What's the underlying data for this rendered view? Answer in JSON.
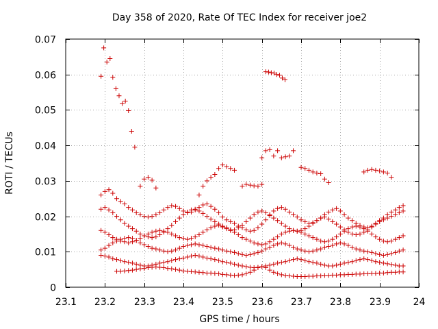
{
  "chart_data": {
    "type": "scatter",
    "title": "Day 358 of 2020, Rate Of TEC Index for receiver joe2",
    "xlabel": "GPS time / hours",
    "ylabel": "ROTI / TECUs",
    "xlim": [
      23.1,
      24.0
    ],
    "ylim": [
      0,
      0.07
    ],
    "x_ticks": [
      "23.1",
      "23.2",
      "23.3",
      "23.4",
      "23.5",
      "23.6",
      "23.7",
      "23.8",
      "23.9",
      "24"
    ],
    "y_ticks": [
      "0",
      "0.01",
      "0.02",
      "0.03",
      "0.04",
      "0.05",
      "0.06",
      "0.07"
    ],
    "grid": true,
    "marker": "+",
    "color": "#cc0000",
    "series": [
      {
        "name": "decaying arc",
        "x": [
          23.19,
          23.197,
          23.205,
          23.213,
          23.22,
          23.228,
          23.236,
          23.244,
          23.252,
          23.26,
          23.268,
          23.276
        ],
        "y": [
          0.0595,
          0.0675,
          0.0635,
          0.0645,
          0.0592,
          0.056,
          0.054,
          0.0518,
          0.0525,
          0.0498,
          0.044,
          0.0395
        ]
      },
      {
        "name": "high arc 23.6",
        "x": [
          23.61,
          23.617,
          23.624,
          23.631,
          23.638,
          23.645,
          23.652,
          23.659
        ],
        "y": [
          0.0608,
          0.0607,
          0.0605,
          0.0604,
          0.06,
          0.0598,
          0.059,
          0.0585
        ]
      },
      {
        "name": "arc near 0.038",
        "x": [
          23.6,
          23.61,
          23.62,
          23.63,
          23.64,
          23.65,
          23.66,
          23.67,
          23.68
        ],
        "y": [
          0.0365,
          0.0385,
          0.0388,
          0.037,
          0.0385,
          0.0365,
          0.0368,
          0.037,
          0.0385
        ]
      },
      {
        "name": "upper band 0.025-0.034",
        "x": [
          23.29,
          23.3,
          23.31,
          23.32,
          23.33,
          23.44,
          23.45,
          23.46,
          23.47,
          23.48,
          23.49,
          23.5,
          23.51,
          23.52,
          23.53,
          23.55,
          23.56,
          23.57,
          23.58,
          23.59,
          23.6,
          23.7,
          23.71,
          23.72,
          23.73,
          23.74,
          23.75,
          23.76,
          23.77,
          23.86,
          23.87,
          23.88,
          23.89,
          23.9,
          23.91,
          23.92,
          23.93
        ],
        "y": [
          0.0285,
          0.0305,
          0.031,
          0.0302,
          0.028,
          0.026,
          0.0285,
          0.03,
          0.031,
          0.0318,
          0.0335,
          0.0345,
          0.034,
          0.0335,
          0.033,
          0.0285,
          0.029,
          0.0288,
          0.0286,
          0.0285,
          0.029,
          0.0338,
          0.0335,
          0.033,
          0.0325,
          0.0322,
          0.032,
          0.0305,
          0.0295,
          0.0325,
          0.033,
          0.0332,
          0.033,
          0.0328,
          0.0325,
          0.0322,
          0.031
        ]
      },
      {
        "name": "band A",
        "x": [
          23.19,
          23.2,
          23.21,
          23.22,
          23.23,
          23.24,
          23.25,
          23.26,
          23.27,
          23.28,
          23.29,
          23.3,
          23.31,
          23.32,
          23.33,
          23.34,
          23.35,
          23.36,
          23.37,
          23.38,
          23.39,
          23.4,
          23.41,
          23.42,
          23.43,
          23.44,
          23.45,
          23.46,
          23.47,
          23.48,
          23.49,
          23.5,
          23.51,
          23.52,
          23.53,
          23.54,
          23.55,
          23.56,
          23.57,
          23.58,
          23.59,
          23.6,
          23.61,
          23.62,
          23.63,
          23.64,
          23.65,
          23.66,
          23.67,
          23.68,
          23.69,
          23.7,
          23.71,
          23.72,
          23.73,
          23.74,
          23.75,
          23.76,
          23.77,
          23.78,
          23.79,
          23.8,
          23.81,
          23.82,
          23.83,
          23.84,
          23.85,
          23.86,
          23.87,
          23.88,
          23.89,
          23.9,
          23.91,
          23.92,
          23.93,
          23.94,
          23.95,
          23.96
        ],
        "y": [
          0.026,
          0.027,
          0.0275,
          0.0265,
          0.025,
          0.0242,
          0.0235,
          0.0225,
          0.0218,
          0.021,
          0.0205,
          0.02,
          0.0198,
          0.02,
          0.0205,
          0.021,
          0.0218,
          0.0225,
          0.023,
          0.0228,
          0.0222,
          0.0215,
          0.021,
          0.0212,
          0.0218,
          0.0225,
          0.0232,
          0.0235,
          0.0228,
          0.022,
          0.021,
          0.0198,
          0.019,
          0.0185,
          0.018,
          0.0172,
          0.0168,
          0.0162,
          0.0158,
          0.016,
          0.0168,
          0.0178,
          0.019,
          0.0205,
          0.0215,
          0.0222,
          0.0225,
          0.022,
          0.0212,
          0.0205,
          0.0198,
          0.019,
          0.0185,
          0.018,
          0.0182,
          0.0188,
          0.0195,
          0.0205,
          0.0212,
          0.0218,
          0.0222,
          0.0215,
          0.0205,
          0.0195,
          0.0188,
          0.018,
          0.0175,
          0.017,
          0.0168,
          0.0172,
          0.018,
          0.0188,
          0.0195,
          0.0205,
          0.0212,
          0.0218,
          0.0225,
          0.023
        ]
      },
      {
        "name": "band B",
        "x": [
          23.19,
          23.2,
          23.21,
          23.22,
          23.23,
          23.24,
          23.25,
          23.26,
          23.27,
          23.28,
          23.29,
          23.3,
          23.31,
          23.32,
          23.33,
          23.34,
          23.35,
          23.36,
          23.37,
          23.38,
          23.39,
          23.4,
          23.41,
          23.42,
          23.43,
          23.44,
          23.45,
          23.46,
          23.47,
          23.48,
          23.49,
          23.5,
          23.51,
          23.52,
          23.53,
          23.54,
          23.55,
          23.56,
          23.57,
          23.58,
          23.59,
          23.6,
          23.61,
          23.62,
          23.63,
          23.64,
          23.65,
          23.66,
          23.67,
          23.68,
          23.69,
          23.7,
          23.71,
          23.72,
          23.73,
          23.74,
          23.75,
          23.76,
          23.77,
          23.78,
          23.79,
          23.8,
          23.81,
          23.82,
          23.83,
          23.84,
          23.85,
          23.86,
          23.87,
          23.88,
          23.89,
          23.9,
          23.91,
          23.92,
          23.93,
          23.94,
          23.95,
          23.96
        ],
        "y": [
          0.022,
          0.0225,
          0.0218,
          0.021,
          0.02,
          0.019,
          0.018,
          0.0172,
          0.0165,
          0.0158,
          0.015,
          0.0145,
          0.0142,
          0.014,
          0.0142,
          0.0148,
          0.0155,
          0.0165,
          0.0175,
          0.0185,
          0.0195,
          0.0205,
          0.0212,
          0.0218,
          0.022,
          0.0215,
          0.0208,
          0.02,
          0.0192,
          0.0185,
          0.0178,
          0.017,
          0.0165,
          0.016,
          0.0162,
          0.0168,
          0.0175,
          0.0185,
          0.0195,
          0.0205,
          0.0212,
          0.0215,
          0.021,
          0.0202,
          0.0195,
          0.0188,
          0.018,
          0.0172,
          0.0165,
          0.016,
          0.0158,
          0.016,
          0.0165,
          0.0172,
          0.018,
          0.0188,
          0.0195,
          0.0198,
          0.0192,
          0.0185,
          0.0178,
          0.017,
          0.0162,
          0.0155,
          0.015,
          0.0148,
          0.015,
          0.0155,
          0.0162,
          0.017,
          0.0178,
          0.0185,
          0.019,
          0.0195,
          0.02,
          0.0205,
          0.021,
          0.0215
        ]
      },
      {
        "name": "band C",
        "x": [
          23.19,
          23.2,
          23.21,
          23.22,
          23.23,
          23.24,
          23.25,
          23.26,
          23.27,
          23.28,
          23.29,
          23.3,
          23.31,
          23.32,
          23.33,
          23.34,
          23.35,
          23.36,
          23.37,
          23.38,
          23.39,
          23.4,
          23.41,
          23.42,
          23.43,
          23.44,
          23.45,
          23.46,
          23.47,
          23.48,
          23.49,
          23.5,
          23.51,
          23.52,
          23.53,
          23.54,
          23.55,
          23.56,
          23.57,
          23.58,
          23.59,
          23.6,
          23.61,
          23.62,
          23.63,
          23.64,
          23.65,
          23.66,
          23.67,
          23.68,
          23.69,
          23.7,
          23.71,
          23.72,
          23.73,
          23.74,
          23.75,
          23.76,
          23.77,
          23.78,
          23.79,
          23.8,
          23.81,
          23.82,
          23.83,
          23.84,
          23.85,
          23.86,
          23.87,
          23.88,
          23.89,
          23.9,
          23.91,
          23.92,
          23.93,
          23.94,
          23.95,
          23.96
        ],
        "y": [
          0.016,
          0.0155,
          0.0148,
          0.014,
          0.0135,
          0.013,
          0.0128,
          0.0125,
          0.0128,
          0.0132,
          0.0138,
          0.0145,
          0.015,
          0.0155,
          0.0158,
          0.016,
          0.0158,
          0.0155,
          0.015,
          0.0145,
          0.014,
          0.0138,
          0.0135,
          0.0138,
          0.0142,
          0.0148,
          0.0155,
          0.0162,
          0.0168,
          0.0172,
          0.0175,
          0.0172,
          0.0168,
          0.0162,
          0.0155,
          0.0148,
          0.014,
          0.0135,
          0.013,
          0.0125,
          0.0122,
          0.012,
          0.0122,
          0.0128,
          0.0135,
          0.0142,
          0.015,
          0.0155,
          0.0158,
          0.016,
          0.0158,
          0.0155,
          0.015,
          0.0145,
          0.014,
          0.0135,
          0.013,
          0.0128,
          0.013,
          0.0135,
          0.0142,
          0.015,
          0.0158,
          0.0165,
          0.017,
          0.0172,
          0.017,
          0.0165,
          0.0158,
          0.015,
          0.0142,
          0.0135,
          0.013,
          0.0128,
          0.013,
          0.0135,
          0.014,
          0.0145
        ]
      },
      {
        "name": "band D",
        "x": [
          23.19,
          23.2,
          23.21,
          23.22,
          23.23,
          23.24,
          23.25,
          23.26,
          23.27,
          23.28,
          23.29,
          23.3,
          23.31,
          23.32,
          23.33,
          23.34,
          23.35,
          23.36,
          23.37,
          23.38,
          23.39,
          23.4,
          23.41,
          23.42,
          23.43,
          23.44,
          23.45,
          23.46,
          23.47,
          23.48,
          23.49,
          23.5,
          23.51,
          23.52,
          23.53,
          23.54,
          23.55,
          23.56,
          23.57,
          23.58,
          23.59,
          23.6,
          23.61,
          23.62,
          23.63,
          23.64,
          23.65,
          23.66,
          23.67,
          23.68,
          23.69,
          23.7,
          23.71,
          23.72,
          23.73,
          23.74,
          23.75,
          23.76,
          23.77,
          23.78,
          23.79,
          23.8,
          23.81,
          23.82,
          23.83,
          23.84,
          23.85,
          23.86,
          23.87,
          23.88,
          23.89,
          23.9,
          23.91,
          23.92,
          23.93,
          23.94,
          23.95,
          23.96
        ],
        "y": [
          0.0105,
          0.011,
          0.0118,
          0.0125,
          0.013,
          0.0135,
          0.0138,
          0.014,
          0.0138,
          0.0132,
          0.0125,
          0.012,
          0.0115,
          0.011,
          0.0108,
          0.0105,
          0.0102,
          0.01,
          0.0102,
          0.0105,
          0.011,
          0.0115,
          0.0118,
          0.012,
          0.0122,
          0.012,
          0.0118,
          0.0115,
          0.0112,
          0.011,
          0.0108,
          0.0105,
          0.0102,
          0.01,
          0.0098,
          0.0095,
          0.0092,
          0.009,
          0.0092,
          0.0095,
          0.0098,
          0.0102,
          0.0108,
          0.0112,
          0.0118,
          0.0122,
          0.0125,
          0.0122,
          0.0118,
          0.0112,
          0.0108,
          0.0105,
          0.0102,
          0.01,
          0.0102,
          0.0105,
          0.0108,
          0.0112,
          0.0115,
          0.0118,
          0.0122,
          0.0125,
          0.0122,
          0.0118,
          0.0112,
          0.0108,
          0.0105,
          0.0102,
          0.01,
          0.0098,
          0.0095,
          0.0092,
          0.009,
          0.0092,
          0.0095,
          0.0098,
          0.0102,
          0.0105
        ]
      },
      {
        "name": "band E",
        "x": [
          23.19,
          23.2,
          23.21,
          23.22,
          23.23,
          23.24,
          23.25,
          23.26,
          23.27,
          23.28,
          23.29,
          23.3,
          23.31,
          23.32,
          23.33,
          23.34,
          23.35,
          23.36,
          23.37,
          23.38,
          23.39,
          23.4,
          23.41,
          23.42,
          23.43,
          23.44,
          23.45,
          23.46,
          23.47,
          23.48,
          23.49,
          23.5,
          23.51,
          23.52,
          23.53,
          23.54,
          23.55,
          23.56,
          23.57,
          23.58,
          23.59,
          23.6,
          23.61,
          23.62,
          23.63,
          23.64,
          23.65,
          23.66,
          23.67,
          23.68,
          23.69,
          23.7,
          23.71,
          23.72,
          23.73,
          23.74,
          23.75,
          23.76,
          23.77,
          23.78,
          23.79,
          23.8,
          23.81,
          23.82,
          23.83,
          23.84,
          23.85,
          23.86,
          23.87,
          23.88,
          23.89,
          23.9,
          23.91,
          23.92,
          23.93,
          23.94,
          23.95,
          23.96
        ],
        "y": [
          0.009,
          0.0088,
          0.0085,
          0.008,
          0.0078,
          0.0075,
          0.0072,
          0.007,
          0.0068,
          0.0065,
          0.0062,
          0.006,
          0.006,
          0.0062,
          0.0065,
          0.0068,
          0.007,
          0.0072,
          0.0075,
          0.0078,
          0.008,
          0.0082,
          0.0085,
          0.0088,
          0.009,
          0.0088,
          0.0085,
          0.0082,
          0.008,
          0.0078,
          0.0075,
          0.0072,
          0.007,
          0.0068,
          0.0065,
          0.0062,
          0.006,
          0.0058,
          0.0056,
          0.0055,
          0.0056,
          0.0058,
          0.006,
          0.0062,
          0.0065,
          0.0068,
          0.007,
          0.0072,
          0.0075,
          0.0078,
          0.008,
          0.0078,
          0.0075,
          0.0072,
          0.007,
          0.0068,
          0.0065,
          0.0062,
          0.006,
          0.006,
          0.0062,
          0.0065,
          0.0068,
          0.007,
          0.0072,
          0.0075,
          0.0078,
          0.008,
          0.0078,
          0.0075,
          0.0072,
          0.007,
          0.0068,
          0.0066,
          0.0064,
          0.0062,
          0.006,
          0.006
        ]
      },
      {
        "name": "baseline band",
        "x": [
          23.23,
          23.24,
          23.25,
          23.26,
          23.27,
          23.28,
          23.29,
          23.3,
          23.31,
          23.32,
          23.33,
          23.34,
          23.35,
          23.36,
          23.37,
          23.38,
          23.39,
          23.4,
          23.41,
          23.42,
          23.43,
          23.44,
          23.45,
          23.46,
          23.47,
          23.48,
          23.49,
          23.5,
          23.51,
          23.52,
          23.53,
          23.54,
          23.55,
          23.56,
          23.57,
          23.58,
          23.59,
          23.6,
          23.61,
          23.62,
          23.63,
          23.64,
          23.65,
          23.66,
          23.67,
          23.68,
          23.69,
          23.7,
          23.71,
          23.72,
          23.73,
          23.74,
          23.75,
          23.76,
          23.77,
          23.78,
          23.79,
          23.8,
          23.81,
          23.82,
          23.83,
          23.84,
          23.85,
          23.86,
          23.87,
          23.88,
          23.89,
          23.9,
          23.91,
          23.92,
          23.93,
          23.94,
          23.95,
          23.96
        ],
        "y": [
          0.0045,
          0.0045,
          0.0046,
          0.0047,
          0.0048,
          0.005,
          0.0052,
          0.0053,
          0.0055,
          0.0056,
          0.0057,
          0.0056,
          0.0055,
          0.0053,
          0.0052,
          0.005,
          0.0048,
          0.0046,
          0.0045,
          0.0044,
          0.0043,
          0.0042,
          0.0041,
          0.004,
          0.004,
          0.0039,
          0.0038,
          0.0036,
          0.0035,
          0.0034,
          0.0033,
          0.0034,
          0.0035,
          0.0038,
          0.0042,
          0.0048,
          0.0055,
          0.0058,
          0.0055,
          0.0048,
          0.0042,
          0.0038,
          0.0035,
          0.0033,
          0.0032,
          0.0031,
          0.003,
          0.003,
          0.003,
          0.0031,
          0.0031,
          0.0032,
          0.0032,
          0.0033,
          0.0033,
          0.0034,
          0.0034,
          0.0035,
          0.0035,
          0.0036,
          0.0036,
          0.0037,
          0.0037,
          0.0038,
          0.0038,
          0.0039,
          0.0039,
          0.004,
          0.004,
          0.0041,
          0.0042,
          0.0042,
          0.0043,
          0.0043
        ]
      }
    ]
  }
}
